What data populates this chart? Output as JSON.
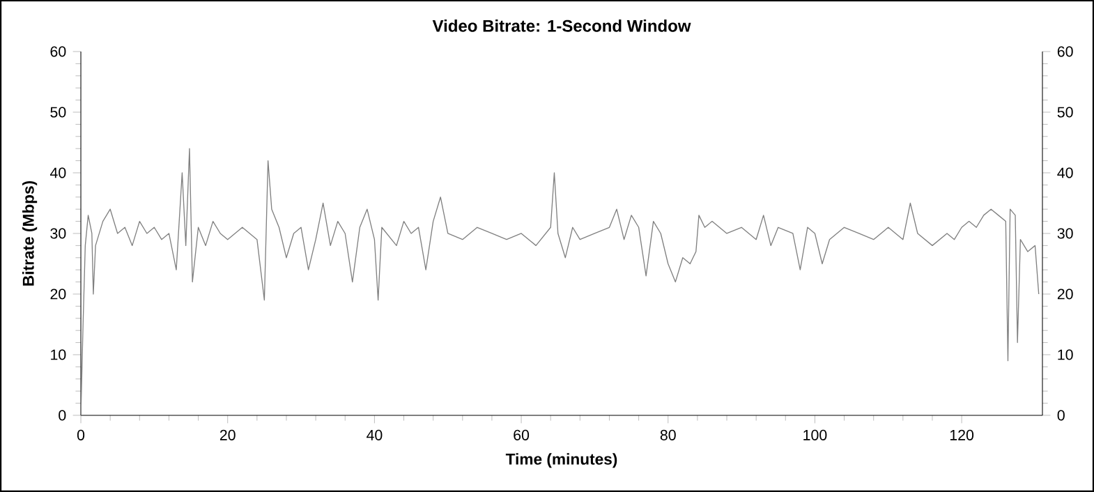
{
  "chart_data": {
    "type": "line",
    "title": "Video Bitrate: 1-Second Window",
    "xlabel": "Time (minutes)",
    "ylabel": "Bitrate (Mbps)",
    "x": [
      0,
      0.3,
      0.6,
      1,
      1.5,
      1.7,
      2,
      3,
      4,
      5,
      6,
      7,
      8,
      9,
      10,
      11,
      12,
      13,
      13.8,
      14.3,
      14.8,
      15.2,
      16,
      17,
      18,
      19,
      20,
      22,
      24,
      25,
      25.5,
      26,
      27,
      28,
      29,
      30,
      31,
      32,
      33,
      34,
      35,
      36,
      37,
      38,
      39,
      40,
      40.5,
      41,
      43,
      44,
      45,
      46,
      47,
      48,
      49,
      50,
      52,
      54,
      56,
      58,
      60,
      62,
      64,
      64.5,
      65,
      66,
      67,
      68,
      70,
      72,
      73,
      74,
      75,
      76,
      77,
      78,
      79,
      80,
      81,
      82,
      83,
      83.8,
      84.2,
      85,
      86,
      88,
      90,
      92,
      93,
      94,
      95,
      97,
      98,
      99,
      100,
      101,
      102,
      104,
      106,
      108,
      110,
      112,
      113,
      114,
      116,
      118,
      119,
      120,
      121,
      122,
      123,
      124,
      125,
      126,
      126.3,
      126.6,
      127.3,
      127.6,
      128,
      129,
      130,
      130.5
    ],
    "values": [
      0,
      15,
      28,
      33,
      30,
      20,
      28,
      32,
      34,
      30,
      31,
      28,
      32,
      30,
      31,
      29,
      30,
      24,
      40,
      28,
      44,
      22,
      31,
      28,
      32,
      30,
      29,
      31,
      29,
      19,
      42,
      34,
      31,
      26,
      30,
      31,
      24,
      29,
      35,
      28,
      32,
      30,
      22,
      31,
      34,
      29,
      19,
      31,
      28,
      32,
      30,
      31,
      24,
      32,
      36,
      30,
      29,
      31,
      30,
      29,
      30,
      28,
      31,
      40,
      30,
      26,
      31,
      29,
      30,
      31,
      34,
      29,
      33,
      31,
      23,
      32,
      30,
      25,
      22,
      26,
      25,
      27,
      33,
      31,
      32,
      30,
      31,
      29,
      33,
      28,
      31,
      30,
      24,
      31,
      30,
      25,
      29,
      31,
      30,
      29,
      31,
      29,
      35,
      30,
      28,
      30,
      29,
      31,
      32,
      31,
      33,
      34,
      33,
      32,
      9,
      34,
      33,
      12,
      29,
      27,
      28,
      20
    ],
    "color": "#808080",
    "marker": "none",
    "line_style": "solid",
    "grid": false,
    "xlim": [
      0,
      131
    ],
    "xticks": [
      0,
      20,
      40,
      60,
      80,
      100,
      120
    ],
    "ylim": [
      0,
      60
    ],
    "yticks": [
      0,
      10,
      20,
      30,
      40,
      50,
      60
    ],
    "y2lim": [
      0,
      60
    ],
    "y2ticks": [
      0,
      10,
      20,
      30,
      40,
      50,
      60
    ]
  }
}
